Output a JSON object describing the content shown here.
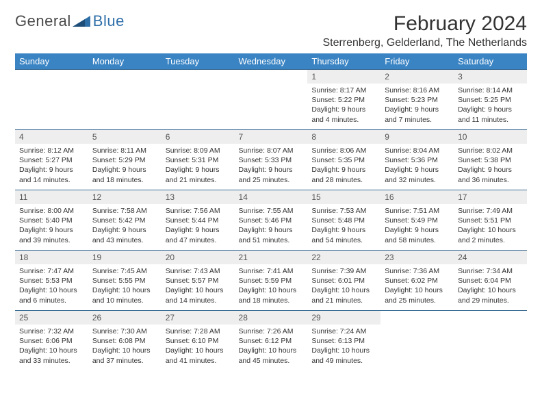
{
  "brand": {
    "word1": "General",
    "word2": "Blue"
  },
  "colors": {
    "header_bg": "#3a84c4",
    "header_text": "#ffffff",
    "row_border": "#3a6a94",
    "daynum_bg": "#eeeeee",
    "text": "#333333",
    "logo_gray": "#4a4a4a",
    "logo_blue": "#2f6fa8"
  },
  "title": "February 2024",
  "location": "Sterrenberg, Gelderland, The Netherlands",
  "weekdays": [
    "Sunday",
    "Monday",
    "Tuesday",
    "Wednesday",
    "Thursday",
    "Friday",
    "Saturday"
  ],
  "layout": {
    "first_weekday_index": 4,
    "days_in_month": 29
  },
  "days": {
    "1": {
      "sunrise": "8:17 AM",
      "sunset": "5:22 PM",
      "daylight": "9 hours and 4 minutes."
    },
    "2": {
      "sunrise": "8:16 AM",
      "sunset": "5:23 PM",
      "daylight": "9 hours and 7 minutes."
    },
    "3": {
      "sunrise": "8:14 AM",
      "sunset": "5:25 PM",
      "daylight": "9 hours and 11 minutes."
    },
    "4": {
      "sunrise": "8:12 AM",
      "sunset": "5:27 PM",
      "daylight": "9 hours and 14 minutes."
    },
    "5": {
      "sunrise": "8:11 AM",
      "sunset": "5:29 PM",
      "daylight": "9 hours and 18 minutes."
    },
    "6": {
      "sunrise": "8:09 AM",
      "sunset": "5:31 PM",
      "daylight": "9 hours and 21 minutes."
    },
    "7": {
      "sunrise": "8:07 AM",
      "sunset": "5:33 PM",
      "daylight": "9 hours and 25 minutes."
    },
    "8": {
      "sunrise": "8:06 AM",
      "sunset": "5:35 PM",
      "daylight": "9 hours and 28 minutes."
    },
    "9": {
      "sunrise": "8:04 AM",
      "sunset": "5:36 PM",
      "daylight": "9 hours and 32 minutes."
    },
    "10": {
      "sunrise": "8:02 AM",
      "sunset": "5:38 PM",
      "daylight": "9 hours and 36 minutes."
    },
    "11": {
      "sunrise": "8:00 AM",
      "sunset": "5:40 PM",
      "daylight": "9 hours and 39 minutes."
    },
    "12": {
      "sunrise": "7:58 AM",
      "sunset": "5:42 PM",
      "daylight": "9 hours and 43 minutes."
    },
    "13": {
      "sunrise": "7:56 AM",
      "sunset": "5:44 PM",
      "daylight": "9 hours and 47 minutes."
    },
    "14": {
      "sunrise": "7:55 AM",
      "sunset": "5:46 PM",
      "daylight": "9 hours and 51 minutes."
    },
    "15": {
      "sunrise": "7:53 AM",
      "sunset": "5:48 PM",
      "daylight": "9 hours and 54 minutes."
    },
    "16": {
      "sunrise": "7:51 AM",
      "sunset": "5:49 PM",
      "daylight": "9 hours and 58 minutes."
    },
    "17": {
      "sunrise": "7:49 AM",
      "sunset": "5:51 PM",
      "daylight": "10 hours and 2 minutes."
    },
    "18": {
      "sunrise": "7:47 AM",
      "sunset": "5:53 PM",
      "daylight": "10 hours and 6 minutes."
    },
    "19": {
      "sunrise": "7:45 AM",
      "sunset": "5:55 PM",
      "daylight": "10 hours and 10 minutes."
    },
    "20": {
      "sunrise": "7:43 AM",
      "sunset": "5:57 PM",
      "daylight": "10 hours and 14 minutes."
    },
    "21": {
      "sunrise": "7:41 AM",
      "sunset": "5:59 PM",
      "daylight": "10 hours and 18 minutes."
    },
    "22": {
      "sunrise": "7:39 AM",
      "sunset": "6:01 PM",
      "daylight": "10 hours and 21 minutes."
    },
    "23": {
      "sunrise": "7:36 AM",
      "sunset": "6:02 PM",
      "daylight": "10 hours and 25 minutes."
    },
    "24": {
      "sunrise": "7:34 AM",
      "sunset": "6:04 PM",
      "daylight": "10 hours and 29 minutes."
    },
    "25": {
      "sunrise": "7:32 AM",
      "sunset": "6:06 PM",
      "daylight": "10 hours and 33 minutes."
    },
    "26": {
      "sunrise": "7:30 AM",
      "sunset": "6:08 PM",
      "daylight": "10 hours and 37 minutes."
    },
    "27": {
      "sunrise": "7:28 AM",
      "sunset": "6:10 PM",
      "daylight": "10 hours and 41 minutes."
    },
    "28": {
      "sunrise": "7:26 AM",
      "sunset": "6:12 PM",
      "daylight": "10 hours and 45 minutes."
    },
    "29": {
      "sunrise": "7:24 AM",
      "sunset": "6:13 PM",
      "daylight": "10 hours and 49 minutes."
    }
  },
  "labels": {
    "sunrise": "Sunrise:",
    "sunset": "Sunset:",
    "daylight": "Daylight:"
  }
}
